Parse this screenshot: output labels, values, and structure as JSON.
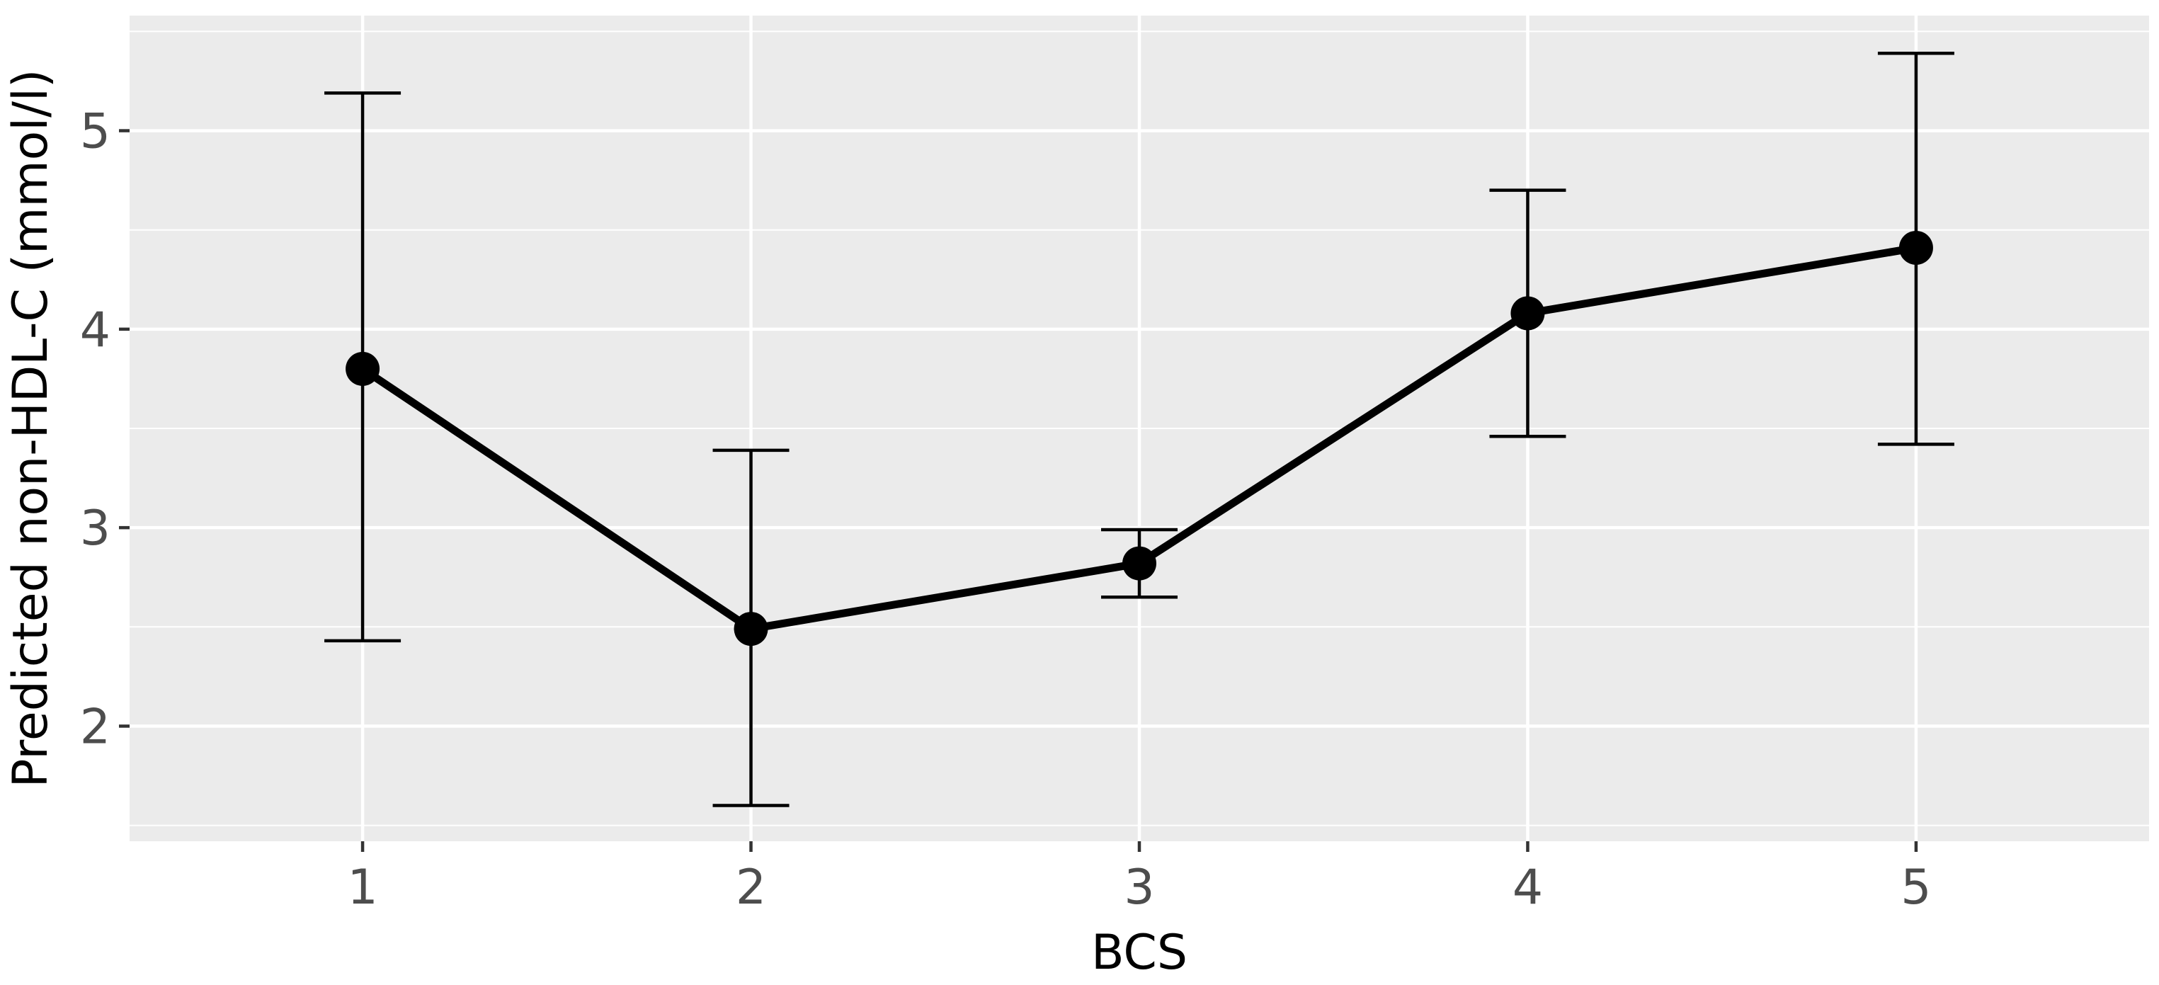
{
  "chart_data": {
    "type": "line",
    "title": "",
    "xlabel": "BCS",
    "ylabel": "Predicted non-HDL-C (mmol/l)",
    "categories": [
      "1",
      "2",
      "3",
      "4",
      "5"
    ],
    "x": [
      1,
      2,
      3,
      4,
      5
    ],
    "xlim": [
      0.4,
      5.6
    ],
    "ylim": [
      1.42,
      5.58
    ],
    "y_ticks": [
      2,
      3,
      4,
      5
    ],
    "y_tick_labels": [
      "2",
      "3",
      "4",
      "5"
    ],
    "x_tick_labels": [
      "1",
      "2",
      "3",
      "4",
      "5"
    ],
    "series": [
      {
        "values": [
          3.8,
          2.49,
          2.82,
          4.08,
          4.41
        ],
        "lower": [
          2.43,
          1.6,
          2.65,
          3.46,
          3.42
        ],
        "upper": [
          5.19,
          3.39,
          2.99,
          4.7,
          5.39
        ]
      }
    ],
    "grid": true,
    "legend": "none",
    "colors": {
      "panel_background": "#ebebeb",
      "grid": "#ffffff",
      "line": "#000000",
      "tick_label": "#4d4d4d"
    }
  }
}
